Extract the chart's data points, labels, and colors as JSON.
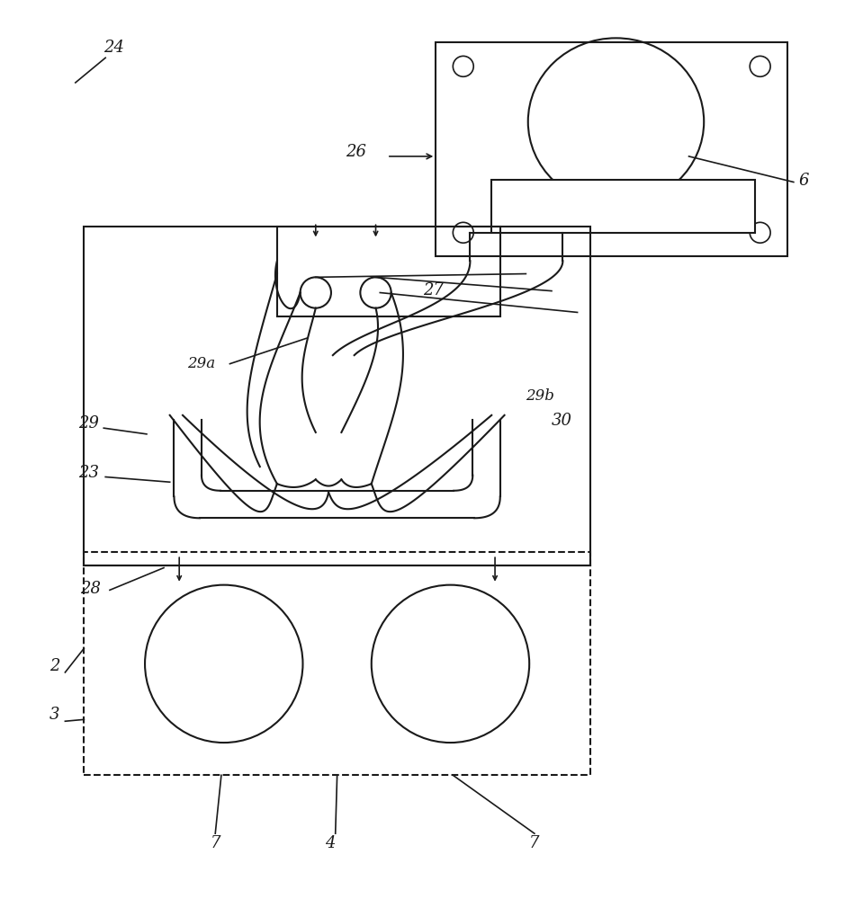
{
  "bg_color": "#ffffff",
  "line_color": "#1a1a1a",
  "label_color": "#1a1a1a",
  "fig_width": 9.59,
  "fig_height": 10.0
}
